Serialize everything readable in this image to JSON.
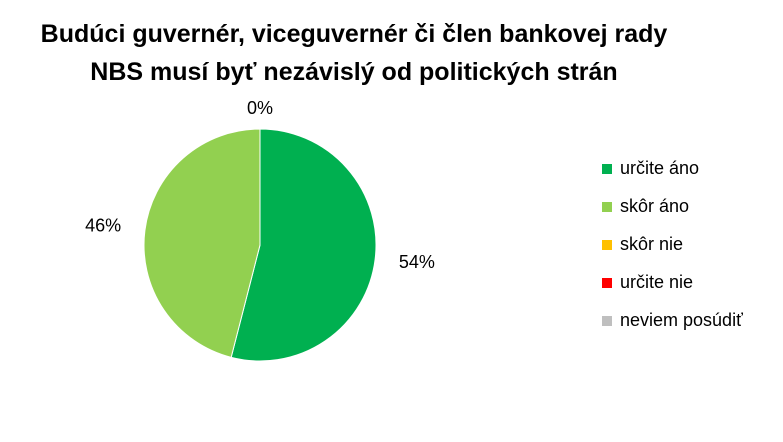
{
  "chart_data": {
    "type": "pie",
    "title_lines": [
      "Budúci guvernér, viceguvernér či člen bankovej rady",
      "NBS musí byť nezávislý od politických strán"
    ],
    "categories": [
      "určite áno",
      "skôr áno",
      "skôr nie",
      "určite nie",
      "neviem posúdiť"
    ],
    "values": [
      54,
      46,
      0,
      0,
      0
    ],
    "data_labels": [
      "54%",
      "46%",
      "0%",
      "",
      ""
    ],
    "colors": [
      "#00b050",
      "#92d050",
      "#ffc000",
      "#ff0000",
      "#bfbfbf"
    ],
    "legend_position": "right",
    "start_angle": "top",
    "direction": "clockwise"
  }
}
